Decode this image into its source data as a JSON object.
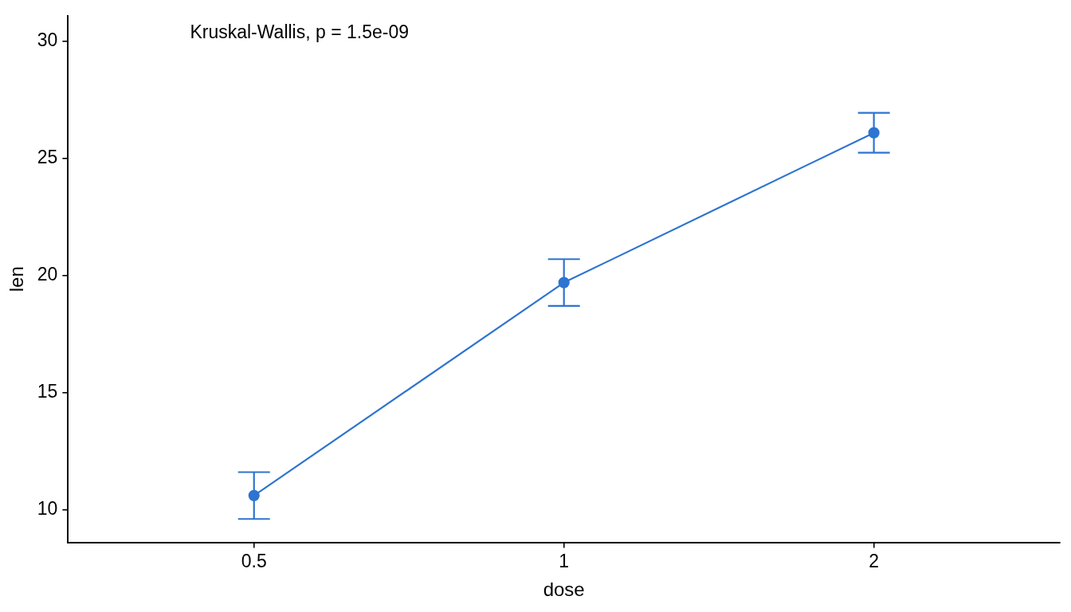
{
  "chart_data": {
    "type": "line",
    "xlabel": "dose",
    "ylabel": "len",
    "categories": [
      "0.5",
      "1",
      "2"
    ],
    "series": [
      {
        "color": "#2e74d0",
        "values": [
          10.6,
          19.7,
          26.1
        ],
        "errors": [
          1.0,
          1.0,
          0.85
        ]
      }
    ],
    "ylim": [
      8.6,
      31.1
    ],
    "yticks": [
      10,
      15,
      20,
      25,
      30
    ],
    "grid": false,
    "legend": false,
    "marker": "circle",
    "line_style": "solid",
    "annotations": [
      "Kruskal-Wallis, p = 1.5e-09"
    ]
  }
}
